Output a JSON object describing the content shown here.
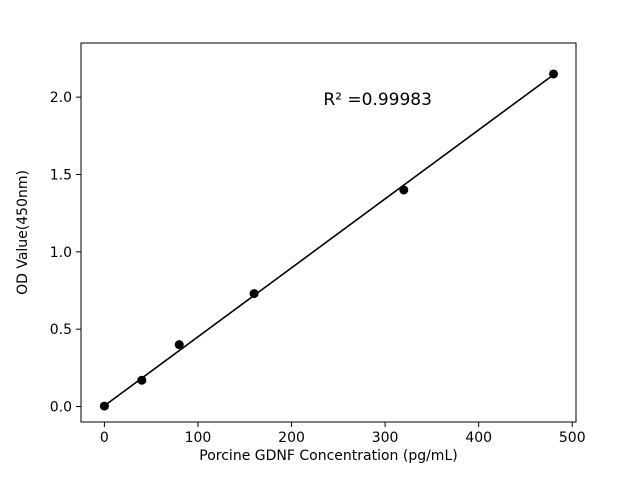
{
  "chart_data": {
    "type": "scatter",
    "title": "",
    "xlabel": "Porcine GDNF Concentration (pg/mL)",
    "ylabel": "OD Value(450nm)",
    "x": [
      0,
      40,
      80,
      160,
      320,
      480
    ],
    "y": [
      0.003,
      0.17,
      0.4,
      0.73,
      1.4,
      2.15
    ],
    "fit_line": {
      "x": [
        0,
        480
      ],
      "y": [
        0.005,
        2.145
      ]
    },
    "annotation": {
      "text": "R² =0.99983",
      "x": 292,
      "y": 1.95
    },
    "xlim": [
      -25,
      504
    ],
    "ylim": [
      -0.1,
      2.35
    ],
    "x_ticks": [
      0,
      100,
      200,
      300,
      400,
      500
    ],
    "x_tick_labels": [
      "0",
      "100",
      "200",
      "300",
      "400",
      "500"
    ],
    "y_ticks": [
      0.0,
      0.5,
      1.0,
      1.5,
      2.0
    ],
    "y_tick_labels": [
      "0.0",
      "0.5",
      "1.0",
      "1.5",
      "2.0"
    ],
    "grid": false,
    "legend": null,
    "marker_color": "#000000",
    "line_color": "#000000",
    "background": "#ffffff"
  }
}
